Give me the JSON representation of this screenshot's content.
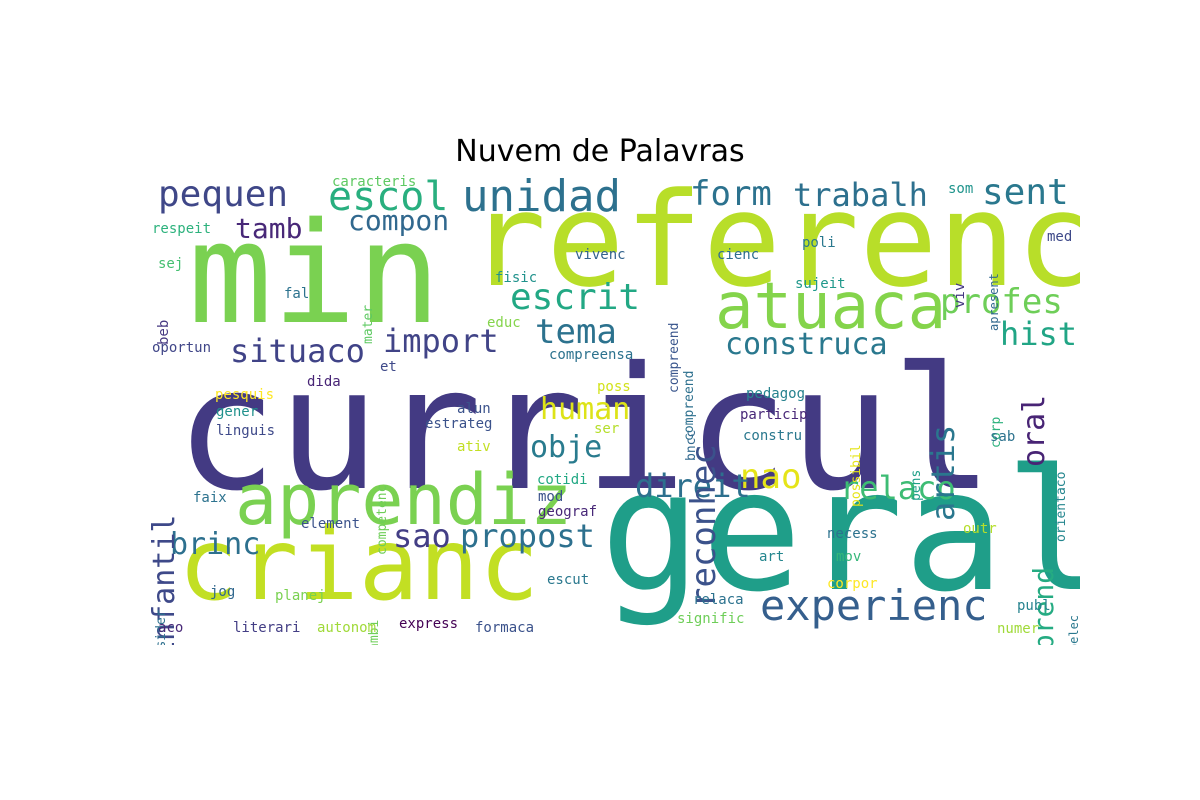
{
  "title": "Nuvem de Palavras",
  "words": [
    {
      "text": "curricul",
      "color": "#433a83",
      "orientation": "horizontal"
    },
    {
      "text": "referenc",
      "color": "#b8de29",
      "orientation": "horizontal"
    },
    {
      "text": "geral",
      "color": "#1f9e89",
      "orientation": "horizontal"
    },
    {
      "text": "min",
      "color": "#7ad151",
      "orientation": "horizontal"
    },
    {
      "text": "crianc",
      "color": "#c2df23",
      "orientation": "horizontal"
    },
    {
      "text": "aprendiz",
      "color": "#7ad151",
      "orientation": "horizontal"
    },
    {
      "text": "atuaca",
      "color": "#84d44b",
      "orientation": "horizontal"
    },
    {
      "text": "unidad",
      "color": "#2d718e",
      "orientation": "horizontal"
    },
    {
      "text": "experienc",
      "color": "#355f8d",
      "orientation": "horizontal"
    },
    {
      "text": "escol",
      "color": "#29af7f",
      "orientation": "horizontal"
    },
    {
      "text": "pequen",
      "color": "#3f4788",
      "orientation": "horizontal"
    },
    {
      "text": "form",
      "color": "#2c728e",
      "orientation": "horizontal"
    },
    {
      "text": "trabalh",
      "color": "#2d708e",
      "orientation": "horizontal"
    },
    {
      "text": "sent",
      "color": "#2a788e",
      "orientation": "horizontal"
    },
    {
      "text": "escrit",
      "color": "#22a884",
      "orientation": "horizontal"
    },
    {
      "text": "profes",
      "color": "#6ece58",
      "orientation": "horizontal"
    },
    {
      "text": "tema",
      "color": "#2c728e",
      "orientation": "horizontal"
    },
    {
      "text": "situaco",
      "color": "#404387",
      "orientation": "horizontal"
    },
    {
      "text": "import",
      "color": "#414487",
      "orientation": "horizontal"
    },
    {
      "text": "construca",
      "color": "#2a788e",
      "orientation": "horizontal"
    },
    {
      "text": "hist",
      "color": "#21a585",
      "orientation": "horizontal"
    },
    {
      "text": "compon",
      "color": "#31688e",
      "orientation": "horizontal"
    },
    {
      "text": "tamb",
      "color": "#482878",
      "orientation": "horizontal"
    },
    {
      "text": "human",
      "color": "#dde318",
      "orientation": "horizontal"
    },
    {
      "text": "obje",
      "color": "#297b8e",
      "orientation": "horizontal"
    },
    {
      "text": "nao",
      "color": "#e5e419",
      "orientation": "horizontal"
    },
    {
      "text": "direit",
      "color": "#2d708e",
      "orientation": "horizontal"
    },
    {
      "text": "relaco",
      "color": "#3dbc74",
      "orientation": "horizontal"
    },
    {
      "text": "brinc",
      "color": "#2d708e",
      "orientation": "horizontal"
    },
    {
      "text": "sao",
      "color": "#433e85",
      "orientation": "horizontal"
    },
    {
      "text": "propost",
      "color": "#2d708e",
      "orientation": "horizontal"
    },
    {
      "text": "reconhec",
      "color": "#3b528b",
      "orientation": "vertical"
    },
    {
      "text": "infantil",
      "color": "#3e4989",
      "orientation": "vertical"
    },
    {
      "text": "artis",
      "color": "#2a778e",
      "orientation": "vertical"
    },
    {
      "text": "oral",
      "color": "#482475",
      "orientation": "vertical"
    },
    {
      "text": "aprend",
      "color": "#25ab82",
      "orientation": "vertical"
    },
    {
      "text": "caracteris",
      "color": "#5ec962",
      "orientation": "horizontal"
    },
    {
      "text": "respeit",
      "color": "#2db27d",
      "orientation": "horizontal"
    },
    {
      "text": "sej",
      "color": "#44bf70",
      "orientation": "horizontal"
    },
    {
      "text": "fal",
      "color": "#2c728e",
      "orientation": "horizontal"
    },
    {
      "text": "beb",
      "color": "#453781",
      "orientation": "vertical"
    },
    {
      "text": "oportun",
      "color": "#404688",
      "orientation": "horizontal"
    },
    {
      "text": "mater",
      "color": "#5ec962",
      "orientation": "vertical"
    },
    {
      "text": "fisic",
      "color": "#20928c",
      "orientation": "horizontal"
    },
    {
      "text": "educ",
      "color": "#84d44b",
      "orientation": "horizontal"
    },
    {
      "text": "vivenc",
      "color": "#33638d",
      "orientation": "horizontal"
    },
    {
      "text": "compreend",
      "color": "#39558c",
      "orientation": "vertical"
    },
    {
      "text": "cienc",
      "color": "#2e6e8e",
      "orientation": "horizontal"
    },
    {
      "text": "poli",
      "color": "#2a788e",
      "orientation": "horizontal"
    },
    {
      "text": "sujeit",
      "color": "#1f988b",
      "orientation": "horizontal"
    },
    {
      "text": "som",
      "color": "#1f948c",
      "orientation": "horizontal"
    },
    {
      "text": "med",
      "color": "#3e4989",
      "orientation": "horizontal"
    },
    {
      "text": "viv",
      "color": "#453882",
      "orientation": "vertical"
    },
    {
      "text": "apresent",
      "color": "#31688e",
      "orientation": "vertical"
    },
    {
      "text": "compreensa",
      "color": "#2c728e",
      "orientation": "horizontal"
    },
    {
      "text": "compreend",
      "color": "#2d708e",
      "orientation": "vertical"
    },
    {
      "text": "dida",
      "color": "#482576",
      "orientation": "horizontal"
    },
    {
      "text": "et",
      "color": "#3e4989",
      "orientation": "horizontal"
    },
    {
      "text": "pesquis",
      "color": "#fde725",
      "orientation": "horizontal"
    },
    {
      "text": "gener",
      "color": "#21918c",
      "orientation": "horizontal"
    },
    {
      "text": "linguis",
      "color": "#3e4989",
      "orientation": "horizontal"
    },
    {
      "text": "competenc",
      "color": "#6ece58",
      "orientation": "vertical"
    },
    {
      "text": "alun",
      "color": "#3b528b",
      "orientation": "horizontal"
    },
    {
      "text": "estrateg",
      "color": "#3b528b",
      "orientation": "horizontal"
    },
    {
      "text": "ativ",
      "color": "#c2df23",
      "orientation": "horizontal"
    },
    {
      "text": "poss",
      "color": "#d2e21b",
      "orientation": "horizontal"
    },
    {
      "text": "ser",
      "color": "#b5de2b",
      "orientation": "horizontal"
    },
    {
      "text": "bncc",
      "color": "#31688e",
      "orientation": "vertical"
    },
    {
      "text": "pedagog",
      "color": "#26828e",
      "orientation": "horizontal"
    },
    {
      "text": "particip",
      "color": "#482878",
      "orientation": "horizontal"
    },
    {
      "text": "constru",
      "color": "#2a788e",
      "orientation": "horizontal"
    },
    {
      "text": "possibil",
      "color": "#e5e419",
      "orientation": "vertical"
    },
    {
      "text": "corp",
      "color": "#2db27d",
      "orientation": "vertical"
    },
    {
      "text": "sab",
      "color": "#2c728e",
      "orientation": "horizontal"
    },
    {
      "text": "pens",
      "color": "#1fa088",
      "orientation": "vertical"
    },
    {
      "text": "orientaco",
      "color": "#24868e",
      "orientation": "vertical"
    },
    {
      "text": "faix",
      "color": "#2c728e",
      "orientation": "horizontal"
    },
    {
      "text": "element",
      "color": "#3b528b",
      "orientation": "horizontal"
    },
    {
      "text": "cotidi",
      "color": "#22a884",
      "orientation": "horizontal"
    },
    {
      "text": "mod",
      "color": "#3b528b",
      "orientation": "horizontal"
    },
    {
      "text": "geograf",
      "color": "#482878",
      "orientation": "horizontal"
    },
    {
      "text": "consider",
      "color": "#2d708e",
      "orientation": "vertical"
    },
    {
      "text": "ambi",
      "color": "#6ece58",
      "orientation": "vertical"
    },
    {
      "text": "jog",
      "color": "#31688e",
      "orientation": "horizontal"
    },
    {
      "text": "planej",
      "color": "#7ad151",
      "orientation": "horizontal"
    },
    {
      "text": "escut",
      "color": "#2a788e",
      "orientation": "horizontal"
    },
    {
      "text": "art",
      "color": "#24868e",
      "orientation": "horizontal"
    },
    {
      "text": "necess",
      "color": "#2c728e",
      "orientation": "horizontal"
    },
    {
      "text": "mov",
      "color": "#35b779",
      "orientation": "horizontal"
    },
    {
      "text": "outr",
      "color": "#b5de2b",
      "orientation": "horizontal"
    },
    {
      "text": "corpor",
      "color": "#fde725",
      "orientation": "horizontal"
    },
    {
      "text": "estabelec",
      "color": "#2a788e",
      "orientation": "vertical"
    },
    {
      "text": "relaca",
      "color": "#2c728e",
      "orientation": "horizontal"
    },
    {
      "text": "publ",
      "color": "#26828e",
      "orientation": "horizontal"
    },
    {
      "text": "signific",
      "color": "#6ece58",
      "orientation": "horizontal"
    },
    {
      "text": "numer",
      "color": "#a0da39",
      "orientation": "horizontal"
    },
    {
      "text": "aco",
      "color": "#482878",
      "orientation": "horizontal"
    },
    {
      "text": "literari",
      "color": "#433e85",
      "orientation": "horizontal"
    },
    {
      "text": "autonom",
      "color": "#a0da39",
      "orientation": "horizontal"
    },
    {
      "text": "express",
      "color": "#440154",
      "orientation": "horizontal"
    },
    {
      "text": "formaca",
      "color": "#3b528b",
      "orientation": "horizontal"
    }
  ]
}
